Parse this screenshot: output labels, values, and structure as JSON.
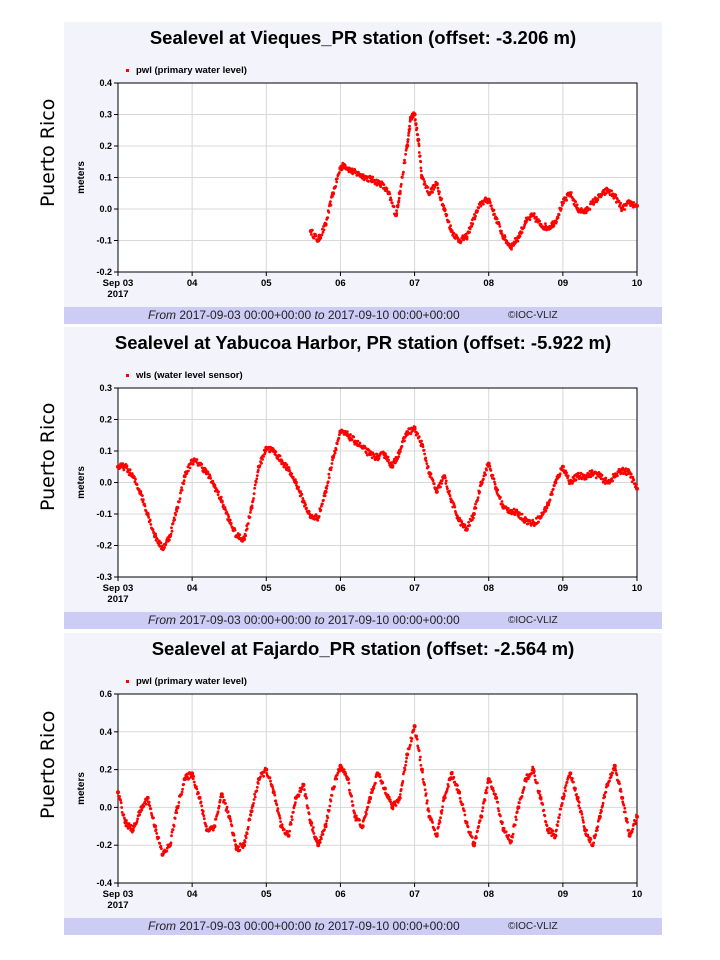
{
  "side_label": "Puerto Rico",
  "footer": {
    "from_word": "From",
    "from_value": "2017-09-03 00:00+00:00",
    "to_word": "to",
    "to_value": "2017-09-10 00:00+00:00",
    "copyright": "©IOC-VLIZ"
  },
  "colors": {
    "series": "#ff0000",
    "footer_bg": "#ccccf4",
    "panel_bg": "#f3f3fc"
  },
  "chart_data": [
    {
      "type": "scatter",
      "title": "Sealevel at Vieques_PR station (offset: -3.206 m)",
      "ylabel": "meters",
      "legend": "pwl (primary water level)",
      "legend_position": "top-left",
      "x_ticks": [
        "Sep 03",
        "04",
        "05",
        "06",
        "07",
        "08",
        "09",
        "10"
      ],
      "x_year": "2017",
      "xlim": [
        3,
        10
      ],
      "ylim": [
        -0.2,
        0.4
      ],
      "y_ticks": [
        "0.4",
        "0.3",
        "0.2",
        "0.1",
        "0.0",
        "-0.1",
        "-0.2"
      ],
      "grid": true,
      "series": [
        {
          "name": "pwl (primary water level)",
          "x": [
            5.6,
            5.7,
            5.8,
            5.9,
            6.0,
            6.05,
            6.15,
            6.25,
            6.35,
            6.45,
            6.55,
            6.65,
            6.75,
            6.8,
            6.9,
            6.95,
            7.0,
            7.05,
            7.1,
            7.2,
            7.3,
            7.4,
            7.5,
            7.6,
            7.7,
            7.8,
            7.9,
            8.0,
            8.1,
            8.2,
            8.3,
            8.4,
            8.5,
            8.6,
            8.7,
            8.8,
            8.9,
            9.0,
            9.1,
            9.2,
            9.3,
            9.4,
            9.5,
            9.6,
            9.7,
            9.8,
            9.9,
            10.0
          ],
          "y": [
            -0.07,
            -0.1,
            -0.05,
            0.05,
            0.13,
            0.14,
            0.12,
            0.11,
            0.1,
            0.09,
            0.08,
            0.05,
            -0.02,
            0.05,
            0.2,
            0.29,
            0.3,
            0.22,
            0.1,
            0.05,
            0.08,
            0.0,
            -0.07,
            -0.1,
            -0.09,
            -0.03,
            0.02,
            0.03,
            -0.03,
            -0.09,
            -0.12,
            -0.09,
            -0.04,
            -0.02,
            -0.05,
            -0.06,
            -0.04,
            0.02,
            0.05,
            0.0,
            -0.01,
            0.02,
            0.04,
            0.06,
            0.04,
            0.0,
            0.02,
            0.01
          ]
        }
      ]
    },
    {
      "type": "scatter",
      "title": "Sealevel at Yabucoa Harbor, PR station (offset: -5.922 m)",
      "ylabel": "meters",
      "legend": "wls (water level sensor)",
      "legend_position": "top-left",
      "x_ticks": [
        "Sep 03",
        "04",
        "05",
        "06",
        "07",
        "08",
        "09",
        "10"
      ],
      "x_year": "2017",
      "xlim": [
        3,
        10
      ],
      "ylim": [
        -0.3,
        0.3
      ],
      "y_ticks": [
        "0.3",
        "0.2",
        "0.1",
        "0.0",
        "-0.1",
        "-0.2",
        "-0.3"
      ],
      "grid": true,
      "series": [
        {
          "name": "wls (water level sensor)",
          "x": [
            3.0,
            3.1,
            3.2,
            3.3,
            3.4,
            3.5,
            3.6,
            3.7,
            3.8,
            3.9,
            4.0,
            4.1,
            4.2,
            4.3,
            4.4,
            4.5,
            4.6,
            4.7,
            4.8,
            4.9,
            5.0,
            5.1,
            5.2,
            5.3,
            5.4,
            5.5,
            5.6,
            5.7,
            5.8,
            5.9,
            6.0,
            6.1,
            6.2,
            6.3,
            6.4,
            6.5,
            6.6,
            6.7,
            6.8,
            6.9,
            7.0,
            7.1,
            7.2,
            7.3,
            7.4,
            7.5,
            7.6,
            7.7,
            7.8,
            7.9,
            8.0,
            8.1,
            8.2,
            8.3,
            8.4,
            8.5,
            8.6,
            8.7,
            8.8,
            8.9,
            9.0,
            9.1,
            9.2,
            9.3,
            9.4,
            9.5,
            9.6,
            9.7,
            9.8,
            9.9,
            10.0
          ],
          "y": [
            0.05,
            0.05,
            0.02,
            -0.03,
            -0.1,
            -0.17,
            -0.21,
            -0.17,
            -0.08,
            0.02,
            0.07,
            0.06,
            0.03,
            -0.01,
            -0.06,
            -0.12,
            -0.17,
            -0.18,
            -0.08,
            0.05,
            0.11,
            0.1,
            0.07,
            0.04,
            0.0,
            -0.06,
            -0.11,
            -0.11,
            -0.03,
            0.08,
            0.16,
            0.15,
            0.13,
            0.11,
            0.09,
            0.08,
            0.09,
            0.05,
            0.1,
            0.16,
            0.17,
            0.12,
            0.03,
            -0.03,
            0.02,
            -0.06,
            -0.12,
            -0.15,
            -0.1,
            0.0,
            0.06,
            -0.02,
            -0.08,
            -0.09,
            -0.1,
            -0.12,
            -0.13,
            -0.11,
            -0.07,
            0.0,
            0.05,
            0.0,
            0.02,
            0.02,
            0.03,
            0.02,
            0.0,
            0.02,
            0.04,
            0.03,
            -0.02
          ]
        }
      ]
    },
    {
      "type": "scatter",
      "title": "Sealevel at Fajardo_PR station (offset: -2.564 m)",
      "ylabel": "meters",
      "legend": "pwl (primary water level)",
      "legend_position": "top-left",
      "x_ticks": [
        "Sep 03",
        "04",
        "05",
        "06",
        "07",
        "08",
        "09",
        "10"
      ],
      "x_year": "2017",
      "xlim": [
        3,
        10
      ],
      "ylim": [
        -0.4,
        0.6
      ],
      "y_ticks": [
        "0.6",
        "0.4",
        "0.2",
        "0.0",
        "-0.2",
        "-0.4"
      ],
      "grid": true,
      "series": [
        {
          "name": "pwl (primary water level)",
          "x": [
            3.0,
            3.1,
            3.2,
            3.3,
            3.4,
            3.5,
            3.6,
            3.7,
            3.8,
            3.9,
            4.0,
            4.1,
            4.2,
            4.3,
            4.4,
            4.5,
            4.6,
            4.7,
            4.8,
            4.9,
            5.0,
            5.1,
            5.2,
            5.3,
            5.4,
            5.5,
            5.6,
            5.7,
            5.8,
            5.9,
            6.0,
            6.1,
            6.2,
            6.3,
            6.4,
            6.5,
            6.6,
            6.7,
            6.8,
            6.9,
            7.0,
            7.1,
            7.2,
            7.3,
            7.4,
            7.5,
            7.6,
            7.7,
            7.8,
            7.9,
            8.0,
            8.1,
            8.2,
            8.3,
            8.4,
            8.5,
            8.6,
            8.7,
            8.8,
            8.9,
            9.0,
            9.1,
            9.2,
            9.3,
            9.4,
            9.5,
            9.6,
            9.7,
            9.8,
            9.9,
            10.0
          ],
          "y": [
            0.08,
            -0.08,
            -0.12,
            -0.02,
            0.05,
            -0.1,
            -0.25,
            -0.2,
            0.0,
            0.15,
            0.18,
            0.05,
            -0.12,
            -0.1,
            0.07,
            -0.05,
            -0.22,
            -0.2,
            -0.02,
            0.15,
            0.2,
            0.08,
            -0.1,
            -0.15,
            0.05,
            0.12,
            -0.08,
            -0.2,
            -0.1,
            0.1,
            0.22,
            0.15,
            -0.05,
            -0.1,
            0.05,
            0.18,
            0.1,
            0.0,
            0.05,
            0.28,
            0.43,
            0.2,
            -0.05,
            -0.15,
            0.05,
            0.18,
            0.08,
            -0.08,
            -0.2,
            -0.05,
            0.15,
            0.05,
            -0.12,
            -0.18,
            0.0,
            0.15,
            0.2,
            0.05,
            -0.12,
            -0.15,
            0.05,
            0.18,
            0.05,
            -0.12,
            -0.2,
            -0.05,
            0.12,
            0.22,
            0.05,
            -0.15,
            -0.05
          ]
        }
      ]
    }
  ]
}
